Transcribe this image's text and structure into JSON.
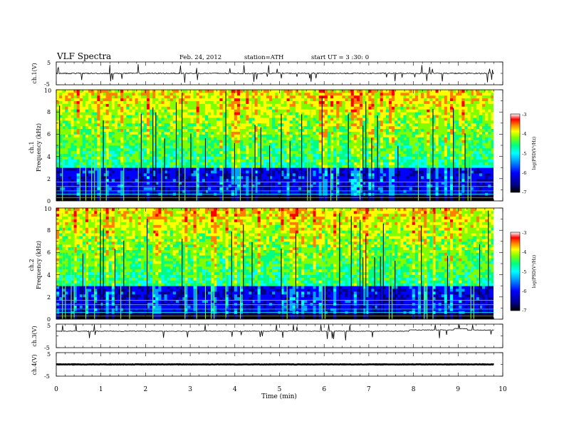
{
  "header": {
    "title": "VLF  Spectra",
    "date": "Feb. 24, 2012",
    "station": "station=ATH",
    "start": "start  UT =   3  :30: 0"
  },
  "colors": {
    "background": "#ffffff",
    "axes": "#000000",
    "trace": "#000000",
    "colormap": [
      "#000000",
      "#00008b",
      "#0000ff",
      "#00a0ff",
      "#00ffff",
      "#00ff80",
      "#80ff00",
      "#ffff00",
      "#ff8000",
      "#ff0000",
      "#ffffff"
    ]
  },
  "chart_data": [
    {
      "type": "line",
      "panel": "ch1",
      "ylabel": "ch.1(V)",
      "ylim": [
        -5,
        5
      ],
      "yticks": [
        "5",
        "-5"
      ],
      "xlim": [
        0,
        10
      ],
      "series": [
        {
          "x": [
            0,
            10
          ],
          "y": [
            0,
            0
          ]
        }
      ]
    },
    {
      "type": "heatmap",
      "panel": "ch1",
      "ylabel_top": "ch.1",
      "ylabel": "Frequency (kHz)",
      "ylim": [
        0,
        10
      ],
      "yticks": [
        "0",
        "2",
        "4",
        "6",
        "8",
        "10"
      ],
      "xlim": [
        0,
        9.8
      ],
      "colorbar": {
        "label": "log(PSD(V²/Hz)",
        "range": [
          -7,
          -3
        ],
        "ticks": [
          "-3",
          "-4",
          "-5",
          "-6",
          "-7"
        ]
      }
    },
    {
      "type": "heatmap",
      "panel": "ch2",
      "ylabel_top": "ch.2",
      "ylabel": "Frequency (kHz)",
      "ylim": [
        0,
        10
      ],
      "yticks": [
        "0",
        "2",
        "4",
        "6",
        "8",
        "10"
      ],
      "xlim": [
        0,
        9.8
      ],
      "colorbar": {
        "label": "log(PSD(V²/Hz)",
        "range": [
          -7,
          -3
        ],
        "ticks": [
          "-3",
          "-4",
          "-5",
          "-6",
          "-7"
        ]
      }
    },
    {
      "type": "line",
      "panel": "ch3",
      "ylabel": "ch.3(V)",
      "ylim": [
        -5,
        5
      ],
      "yticks": [
        "5",
        "-5"
      ],
      "xlim": [
        0,
        10
      ],
      "series": [
        {
          "x": [
            0,
            10
          ],
          "y": [
            2,
            2
          ]
        }
      ]
    },
    {
      "type": "line",
      "panel": "ch4",
      "ylabel": "ch.4(V)",
      "ylim": [
        -5,
        5
      ],
      "yticks": [
        "5",
        "-5"
      ],
      "xlim": [
        0,
        10
      ],
      "xlabel": "Time  (min)",
      "xticks": [
        "0",
        "1",
        "2",
        "3",
        "4",
        "5",
        "6",
        "7",
        "8",
        "9",
        "10"
      ],
      "series": [
        {
          "x": [
            0,
            9.8
          ],
          "y": [
            0,
            0
          ]
        }
      ]
    }
  ]
}
